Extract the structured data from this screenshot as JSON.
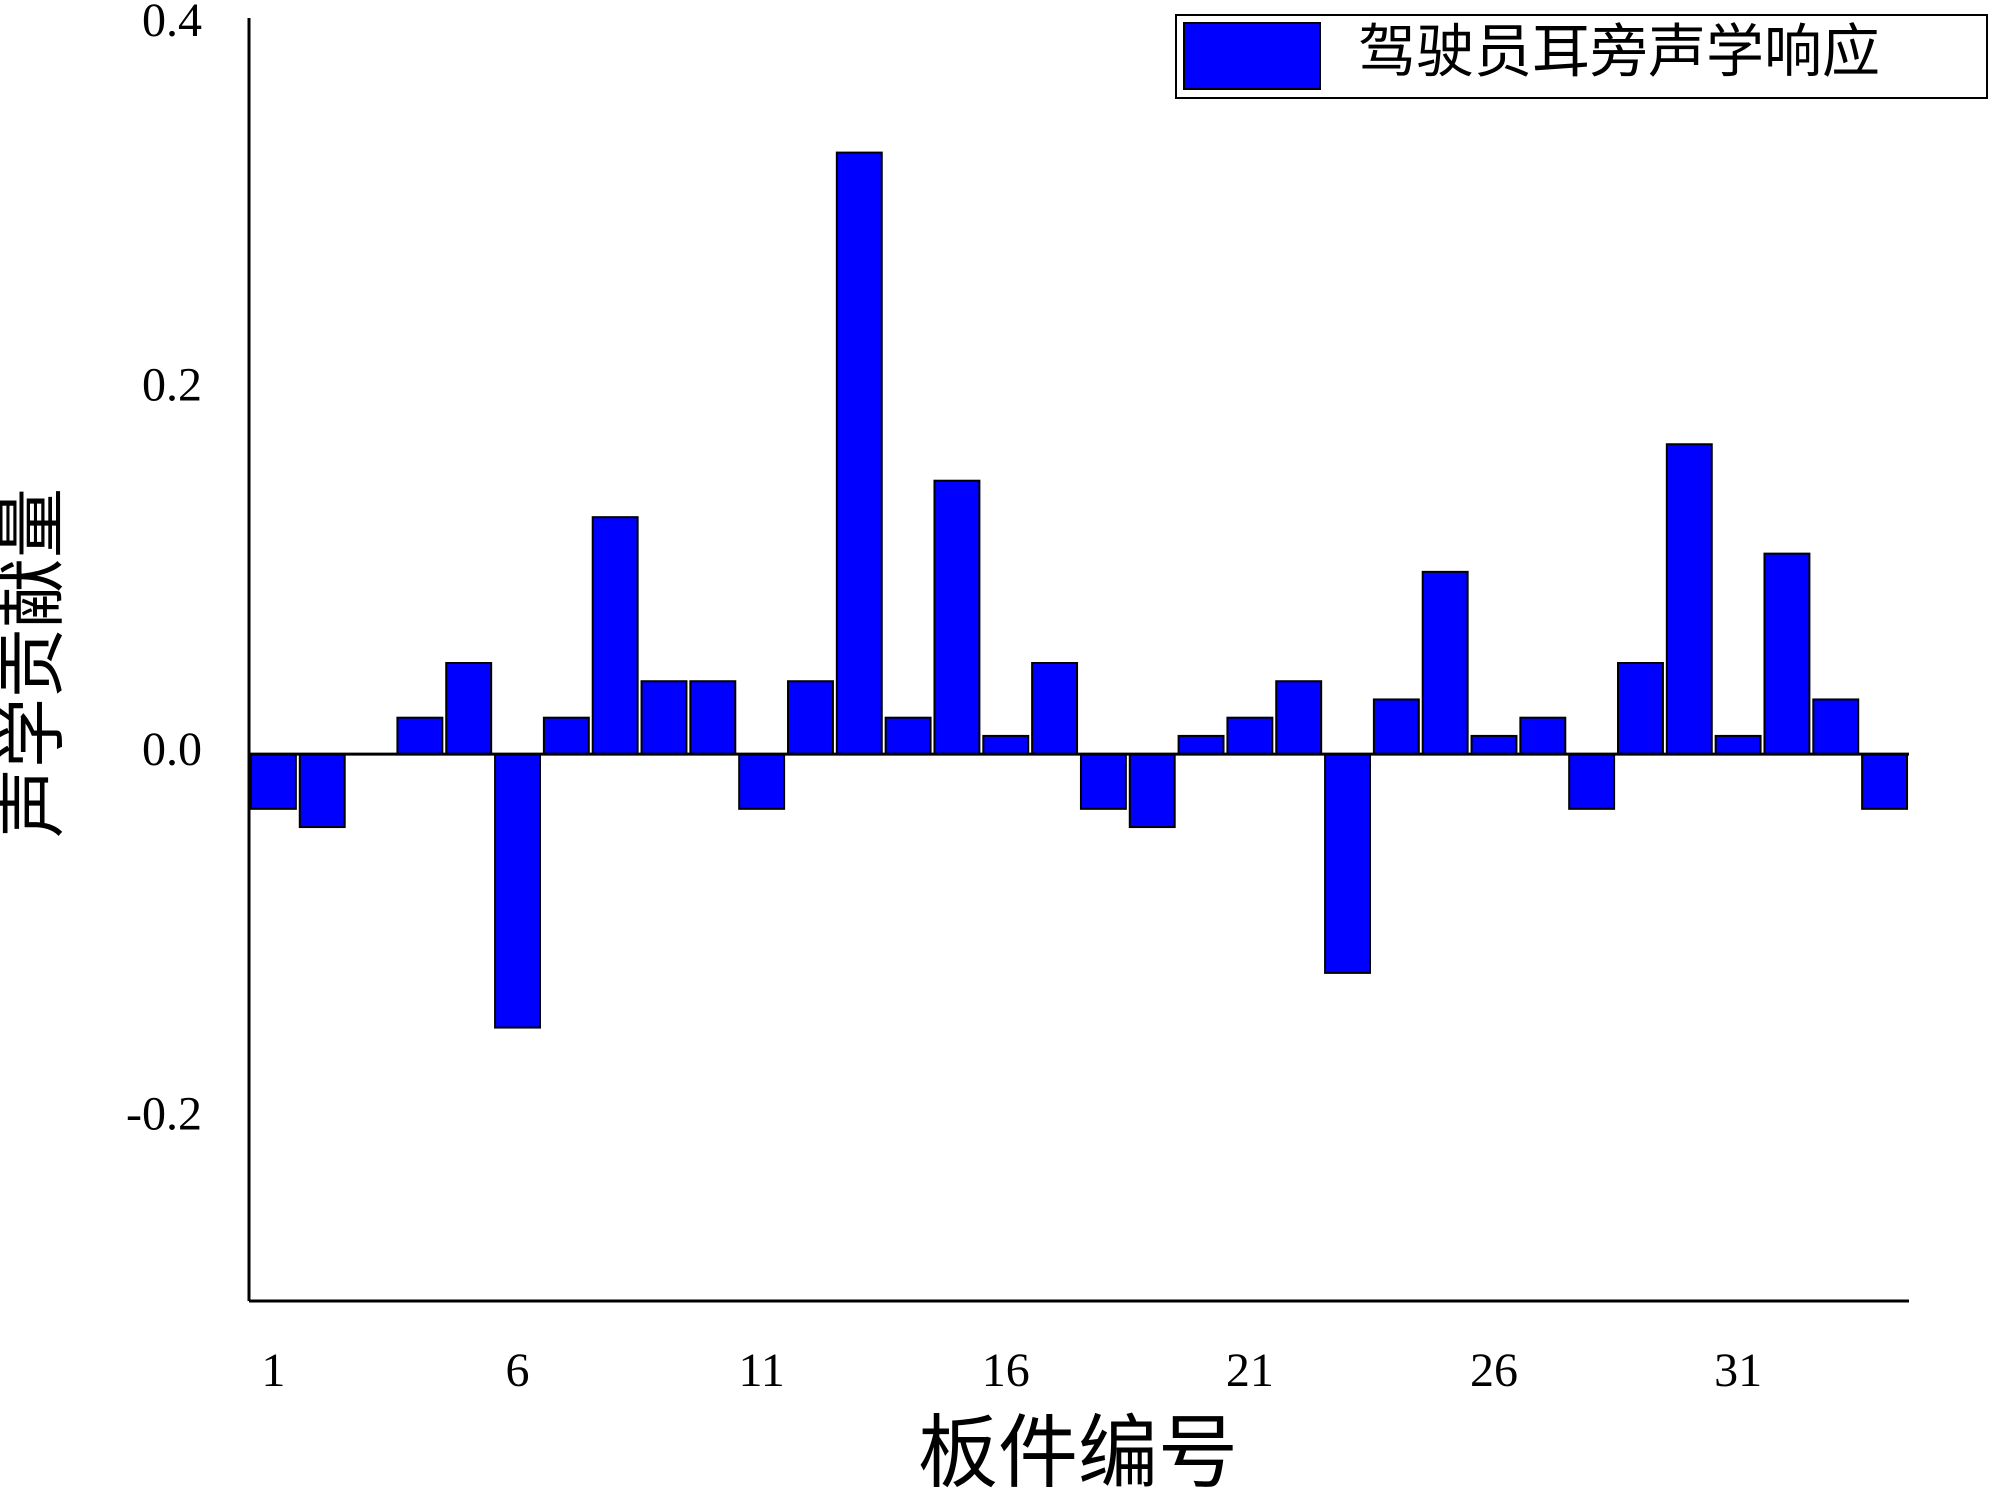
{
  "chart_data": {
    "type": "bar",
    "x_label": "板件编号",
    "y_label": "声学贡献量",
    "categories": [
      "1",
      null,
      null,
      null,
      null,
      "6",
      null,
      null,
      null,
      null,
      "11",
      null,
      null,
      null,
      null,
      "16",
      null,
      null,
      null,
      null,
      "21",
      null,
      null,
      null,
      null,
      "26",
      null,
      null,
      null,
      null,
      "31",
      null,
      null,
      null
    ],
    "series": [
      {
        "name": "驾驶员耳旁声学响应",
        "color": "#0000ff",
        "values": [
          -0.03,
          -0.04,
          0,
          0.02,
          0.05,
          -0.15,
          0.02,
          0.13,
          0.04,
          0.04,
          -0.03,
          0.04,
          0.33,
          0.02,
          0.15,
          0.01,
          0.05,
          -0.03,
          -0.04,
          0.01,
          0.02,
          0.04,
          -0.12,
          0.03,
          0.1,
          0.01,
          0.02,
          -0.03,
          0.05,
          0.17,
          0.01,
          0.11,
          0.03,
          -0.03
        ]
      }
    ],
    "ylim": [
      -0.3,
      0.4
    ],
    "yticks": [
      {
        "value": -0.2,
        "label": "-0.2"
      },
      {
        "value": 0,
        "label": "0.0"
      },
      {
        "value": 0.2,
        "label": "0.2"
      },
      {
        "value": 0.4,
        "label": "0.4"
      }
    ],
    "grid": false,
    "legend": "upper right"
  }
}
